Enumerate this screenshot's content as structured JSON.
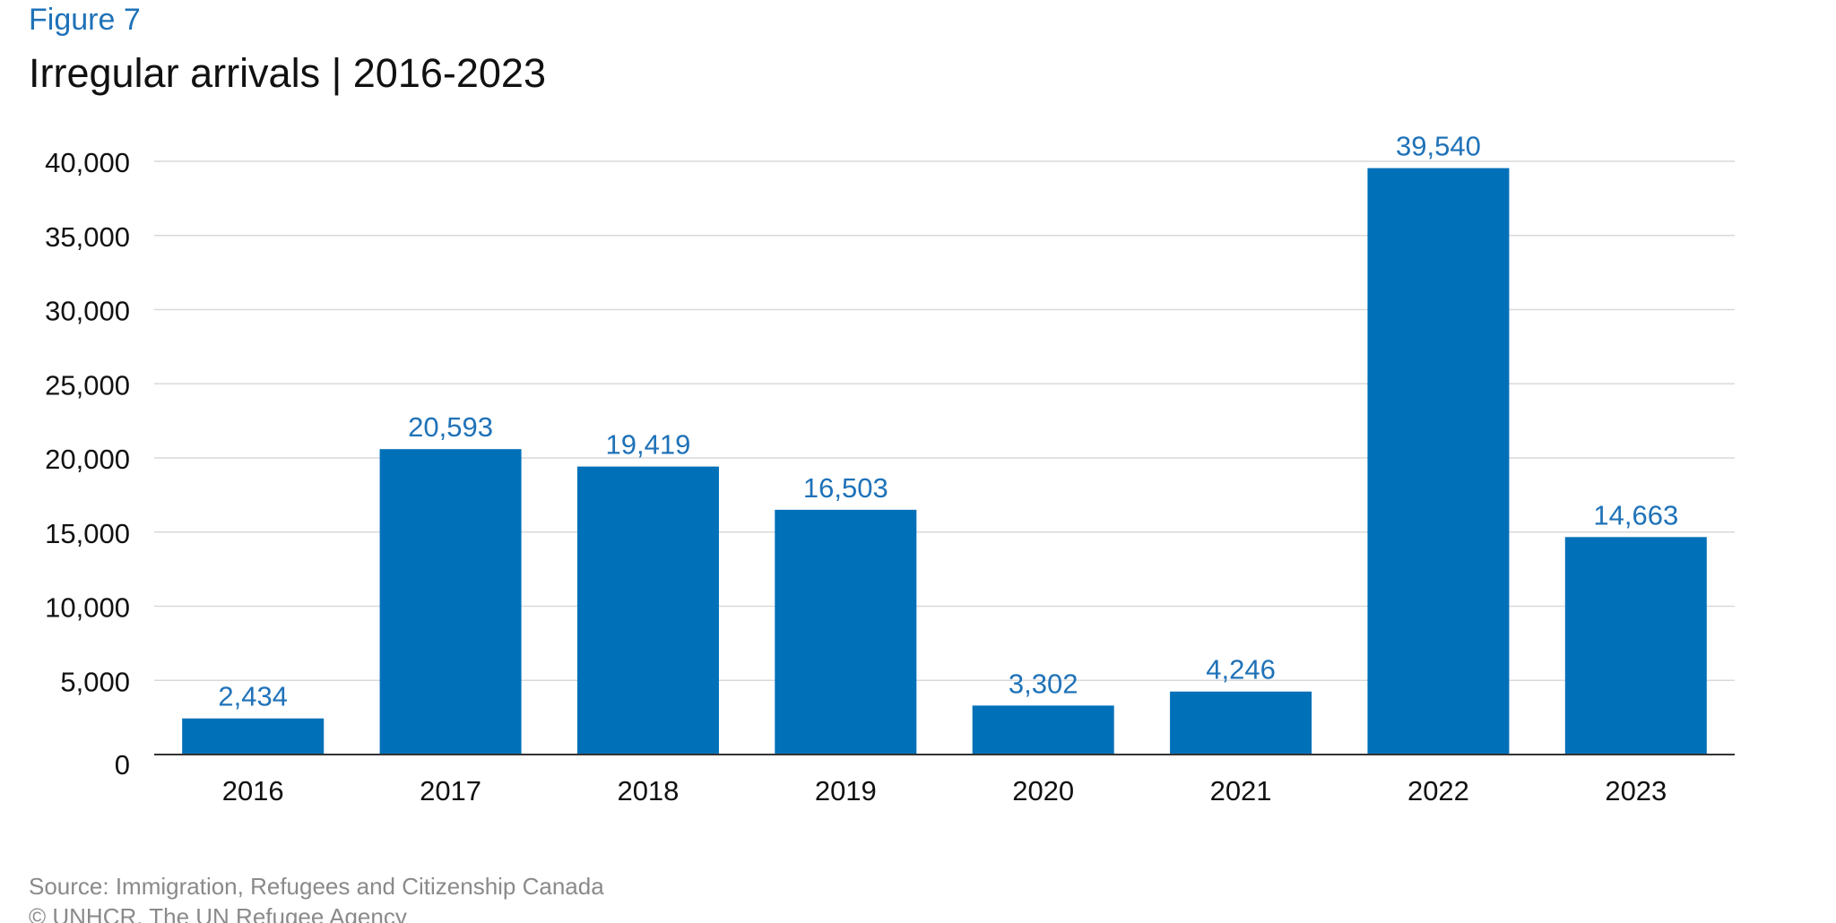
{
  "figure_label": "Figure 7",
  "title": "Irregular arrivals | 2016-2023",
  "source": "Source: Immigration, Refugees and Citizenship Canada",
  "copyright": "© UNHCR, The UN Refugee Agency",
  "colors": {
    "bar": "#0070b8",
    "data_label": "#1f72b8",
    "grid": "#d9d9d9",
    "axis": "#333333",
    "tick_text": "#111111"
  },
  "chart_data": {
    "type": "bar",
    "categories": [
      "2016",
      "2017",
      "2018",
      "2019",
      "2020",
      "2021",
      "2022",
      "2023"
    ],
    "values": [
      2434,
      20593,
      19419,
      16503,
      3302,
      4246,
      39540,
      14663
    ],
    "data_labels": [
      "2,434",
      "20,593",
      "19,419",
      "16,503",
      "3,302",
      "4,246",
      "39,540",
      "14,663"
    ],
    "yticks": [
      0,
      5000,
      10000,
      15000,
      20000,
      25000,
      30000,
      35000,
      40000
    ],
    "ytick_labels": [
      "0",
      "5,000",
      "10,000",
      "15,000",
      "20,000",
      "25,000",
      "30,000",
      "35,000",
      "40,000"
    ],
    "ylim": [
      0,
      40000
    ],
    "grid": true,
    "legend": "none"
  }
}
